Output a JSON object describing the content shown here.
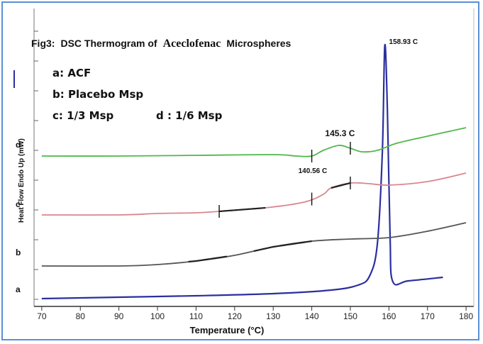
{
  "chart_data": {
    "type": "line",
    "title_prefix": "Fig3:",
    "title_main": "DSC Thermogram of",
    "title_drug": "Aceclofenac",
    "title_suffix": "Microspheres",
    "xlabel": "Temperature (°C)",
    "ylabel": "Heat Flow Endo Up (mW)",
    "xlim": [
      68,
      182
    ],
    "x_ticks": [
      "70",
      "80",
      "90",
      "100",
      "110",
      "120",
      "130",
      "140",
      "150",
      "160",
      "170",
      "180"
    ],
    "legend": {
      "a": "a: ACF",
      "b": "b: Placebo Msp",
      "c": "c: 1/3 Msp",
      "d": "d : 1/6 Msp"
    },
    "series": [
      {
        "name": "a",
        "color": "#2b2f9e",
        "points": [
          [
            70,
            417
          ],
          [
            90,
            415
          ],
          [
            110,
            413
          ],
          [
            130,
            410
          ],
          [
            145,
            405
          ],
          [
            152,
            398
          ],
          [
            155,
            385
          ],
          [
            157,
            340
          ],
          [
            158.3,
            210
          ],
          [
            158.93,
            60
          ],
          [
            159.6,
            150
          ],
          [
            160.3,
            330
          ],
          [
            161,
            393
          ],
          [
            165,
            392
          ],
          [
            174,
            387
          ]
        ],
        "annotations": [
          {
            "label": "158.93 C",
            "x": 158.93
          }
        ]
      },
      {
        "name": "b",
        "color": "#555555",
        "points": [
          [
            70,
            371
          ],
          [
            90,
            371
          ],
          [
            100,
            369
          ],
          [
            110,
            364
          ],
          [
            120,
            356
          ],
          [
            130,
            344
          ],
          [
            140,
            336
          ],
          [
            150,
            333
          ],
          [
            160,
            331
          ],
          [
            170,
            322
          ],
          [
            180,
            310
          ]
        ],
        "highlight": [
          [
            108,
            118
          ],
          [
            125,
            140
          ]
        ]
      },
      {
        "name": "c",
        "color": "#d9868e",
        "points": [
          [
            70,
            299
          ],
          [
            90,
            299
          ],
          [
            100,
            297
          ],
          [
            110,
            296
          ],
          [
            116,
            294
          ],
          [
            128,
            289
          ],
          [
            138,
            281
          ],
          [
            143,
            270
          ],
          [
            145,
            261
          ],
          [
            150,
            254
          ],
          [
            155,
            255
          ],
          [
            160,
            257
          ],
          [
            170,
            252
          ],
          [
            180,
            240
          ]
        ],
        "markers": [
          116,
          140,
          150
        ],
        "highlight": [
          [
            116,
            128
          ],
          [
            145,
            150
          ]
        ],
        "annotations": [
          {
            "label": "140.56 C",
            "x": 140.56
          }
        ]
      },
      {
        "name": "d",
        "color": "#4fb84a",
        "points": [
          [
            70,
            216
          ],
          [
            90,
            216
          ],
          [
            110,
            215
          ],
          [
            130,
            214
          ],
          [
            136,
            216
          ],
          [
            140,
            216
          ],
          [
            143,
            208
          ],
          [
            147,
            201
          ],
          [
            150,
            205
          ],
          [
            153,
            210
          ],
          [
            157,
            208
          ],
          [
            162,
            198
          ],
          [
            170,
            188
          ],
          [
            180,
            176
          ]
        ],
        "markers": [
          140,
          150
        ],
        "annotations": [
          {
            "label": "145.3 C",
            "x": 145.3
          }
        ]
      }
    ],
    "grid": false
  }
}
